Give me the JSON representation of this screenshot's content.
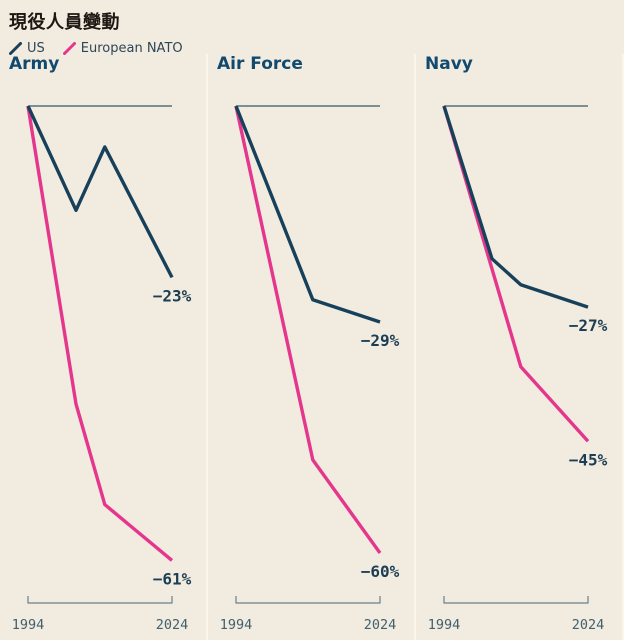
{
  "title": "現役人員變動",
  "legend": {
    "items": [
      {
        "label": "US",
        "color": "#17405a"
      },
      {
        "label": "European NATO",
        "color": "#e5368d"
      }
    ]
  },
  "colors": {
    "background": "#f2ebdf",
    "divider": "#fbf6ec",
    "us_line": "#17405a",
    "nato_line": "#e5368d",
    "panel_title": "#114a6e",
    "end_label": "#1b3e54",
    "tick_label": "#41616f",
    "zero_line": "#35586a",
    "axis": "#69808c"
  },
  "chart_data": {
    "type": "line",
    "title": "現役人員變動",
    "unit": "%",
    "x_range": [
      1994,
      2024
    ],
    "x_ticks": [
      "1994",
      "2024"
    ],
    "grid": false,
    "legend_position": "top-left",
    "baseline_value": 0,
    "panels": [
      {
        "title": "Army",
        "series": [
          {
            "name": "US",
            "color": "#17405a",
            "end_label": "−23%",
            "points": [
              [
                1994,
                0
              ],
              [
                2004,
                -14
              ],
              [
                2010,
                -5.5
              ],
              [
                2024,
                -23
              ]
            ]
          },
          {
            "name": "European NATO",
            "color": "#e5368d",
            "end_label": "−61%",
            "points": [
              [
                1994,
                0
              ],
              [
                2004,
                -40
              ],
              [
                2010,
                -53.5
              ],
              [
                2024,
                -61
              ]
            ]
          }
        ]
      },
      {
        "title": "Air Force",
        "series": [
          {
            "name": "US",
            "color": "#17405a",
            "end_label": "−29%",
            "points": [
              [
                1994,
                0
              ],
              [
                2010,
                -26
              ],
              [
                2024,
                -29
              ]
            ]
          },
          {
            "name": "European NATO",
            "color": "#e5368d",
            "end_label": "−60%",
            "points": [
              [
                1994,
                0
              ],
              [
                2010,
                -47.5
              ],
              [
                2024,
                -60
              ]
            ]
          }
        ]
      },
      {
        "title": "Navy",
        "series": [
          {
            "name": "US",
            "color": "#17405a",
            "end_label": "−27%",
            "points": [
              [
                1994,
                0
              ],
              [
                2004,
                -20.5
              ],
              [
                2010,
                -24
              ],
              [
                2024,
                -27
              ]
            ]
          },
          {
            "name": "European NATO",
            "color": "#e5368d",
            "end_label": "−45%",
            "points": [
              [
                1994,
                0
              ],
              [
                2010,
                -35
              ],
              [
                2024,
                -45
              ]
            ]
          }
        ]
      }
    ]
  }
}
